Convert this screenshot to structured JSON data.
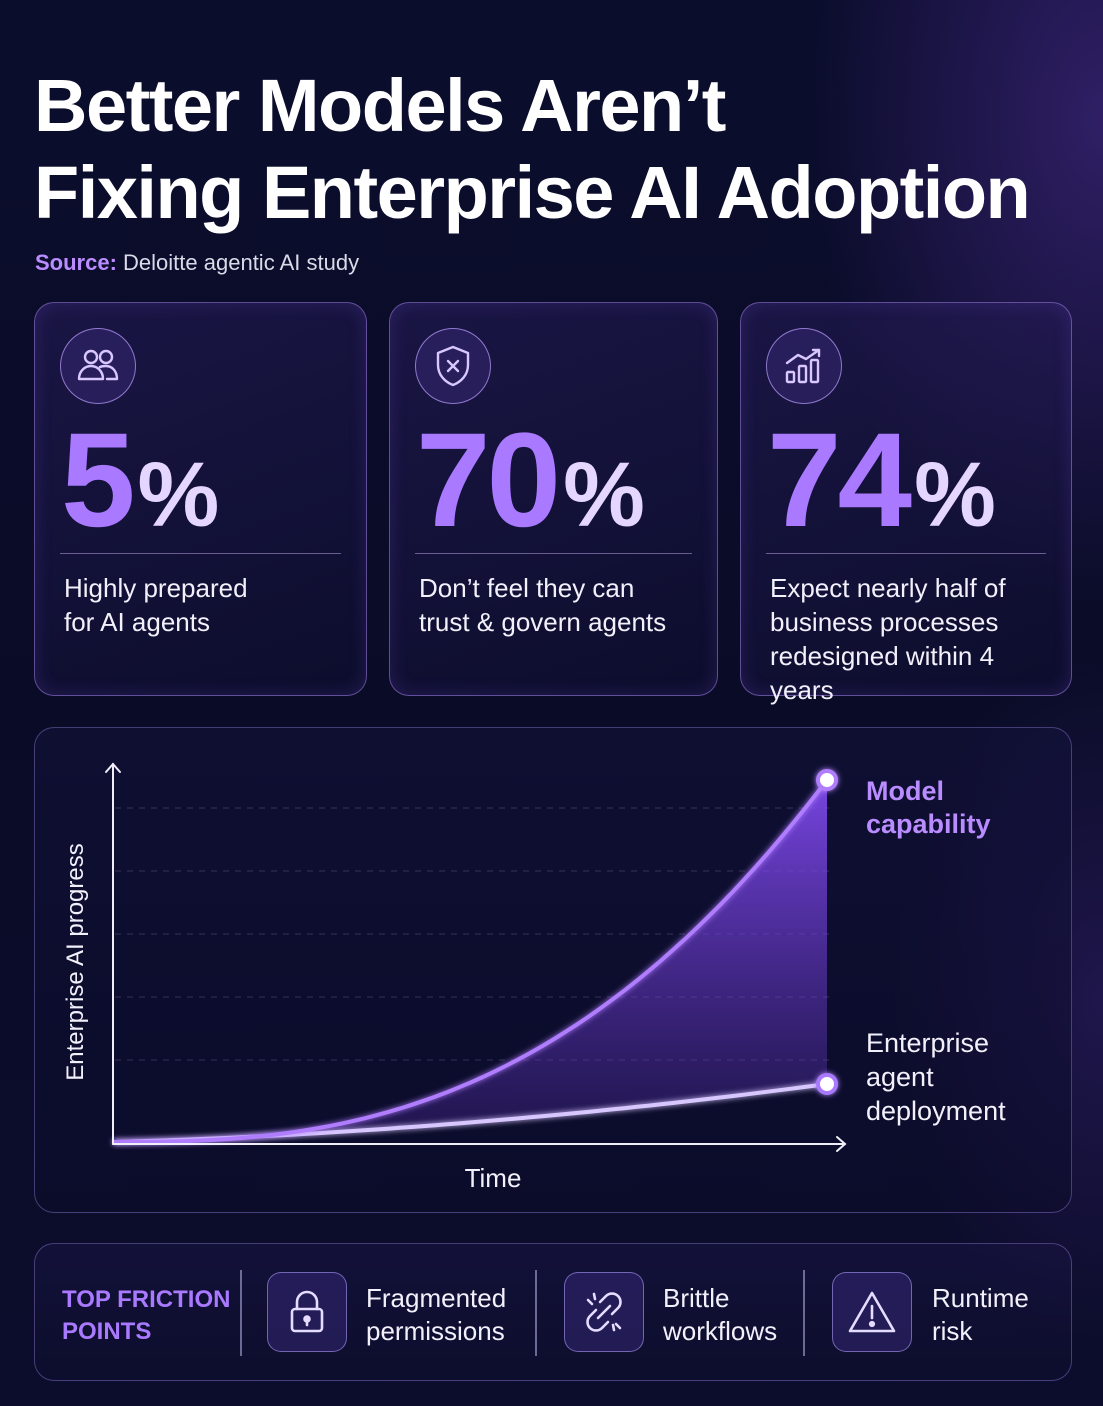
{
  "header": {
    "title_line1": "Better Models Aren’t",
    "title_line2": "Fixing Enterprise AI Adoption",
    "source_label": "Source:",
    "source_text": "Deloitte agentic AI study"
  },
  "stats": [
    {
      "icon": "people-icon",
      "value": "5",
      "unit": "%",
      "line1": "Highly prepared",
      "line2": "for AI agents",
      "line3": ""
    },
    {
      "icon": "shield-x-icon",
      "value": "70",
      "unit": "%",
      "line1": "Don’t feel they can",
      "line2": "trust & govern agents",
      "line3": ""
    },
    {
      "icon": "growth-chart-icon",
      "value": "74",
      "unit": "%",
      "line1": "Expect nearly half of",
      "line2": "business processes",
      "line3": "redesigned within 4 years"
    }
  ],
  "chart_data": {
    "type": "line",
    "xlabel": "Time",
    "ylabel": "Enterprise AI progress",
    "grid": true,
    "series": [
      {
        "name": "Model capability",
        "name_lines": [
          "Model",
          "capability"
        ],
        "color": "#b07dff",
        "shape": "exponential"
      },
      {
        "name": "Enterprise agent deployment",
        "name_lines": [
          "Enterprise",
          "agent",
          "deployment"
        ],
        "color": "#d8c7ff",
        "shape": "slow-linear"
      }
    ]
  },
  "friction": {
    "label_line1": "TOP FRICTION",
    "label_line2": "POINTS",
    "items": [
      {
        "icon": "lock-icon",
        "line1": "Fragmented",
        "line2": "permissions"
      },
      {
        "icon": "broken-link-icon",
        "line1": "Brittle",
        "line2": "workflows"
      },
      {
        "icon": "warning-icon",
        "line1": "Runtime",
        "line2": "risk"
      }
    ]
  },
  "colors": {
    "accent": "#a979ff",
    "background": "#0b0d2a",
    "text": "#ffffff"
  }
}
